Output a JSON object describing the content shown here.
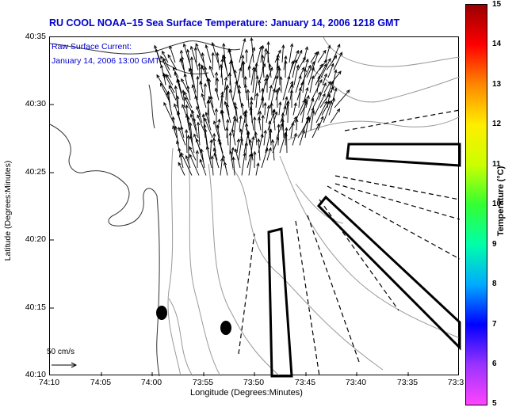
{
  "title": "RU COOL  NOAA–15  Sea Surface Temperature:  January 14, 2006 1218 GMT",
  "current_label": {
    "line1": "Raw Surface Current:",
    "line2": "January 14, 2006 13:00 GMT"
  },
  "axes": {
    "ylabel": "Latitude (Degrees:Minutes)",
    "xlabel": "Longitude (Degrees:Minutes)",
    "yticks": [
      "40:35",
      "40:30",
      "40:25",
      "40:20",
      "40:15",
      "40:10"
    ],
    "xticks": [
      "74:10",
      "74:05",
      "74:00",
      "73:55",
      "73:50",
      "73:45",
      "73:40",
      "73:35",
      "73:3"
    ]
  },
  "scale_arrow": {
    "label": "50 cm/s"
  },
  "colorbar": {
    "label": "Temperature (°C)",
    "ticks": [
      "15",
      "14",
      "13",
      "12",
      "11",
      "10",
      "9",
      "8",
      "7",
      "6",
      "5"
    ],
    "range": [
      5,
      15
    ],
    "colormap": [
      "#ff44ff",
      "#9933ff",
      "#0000ff",
      "#00aaff",
      "#00ffaa",
      "#33ff33",
      "#ccff00",
      "#ffee00",
      "#ff8800",
      "#ff0000",
      "#990000"
    ]
  },
  "colors": {
    "title_text": "#0000cc",
    "coastline": "#333333",
    "bathymetry": "#999999",
    "vectors": "#000000"
  }
}
